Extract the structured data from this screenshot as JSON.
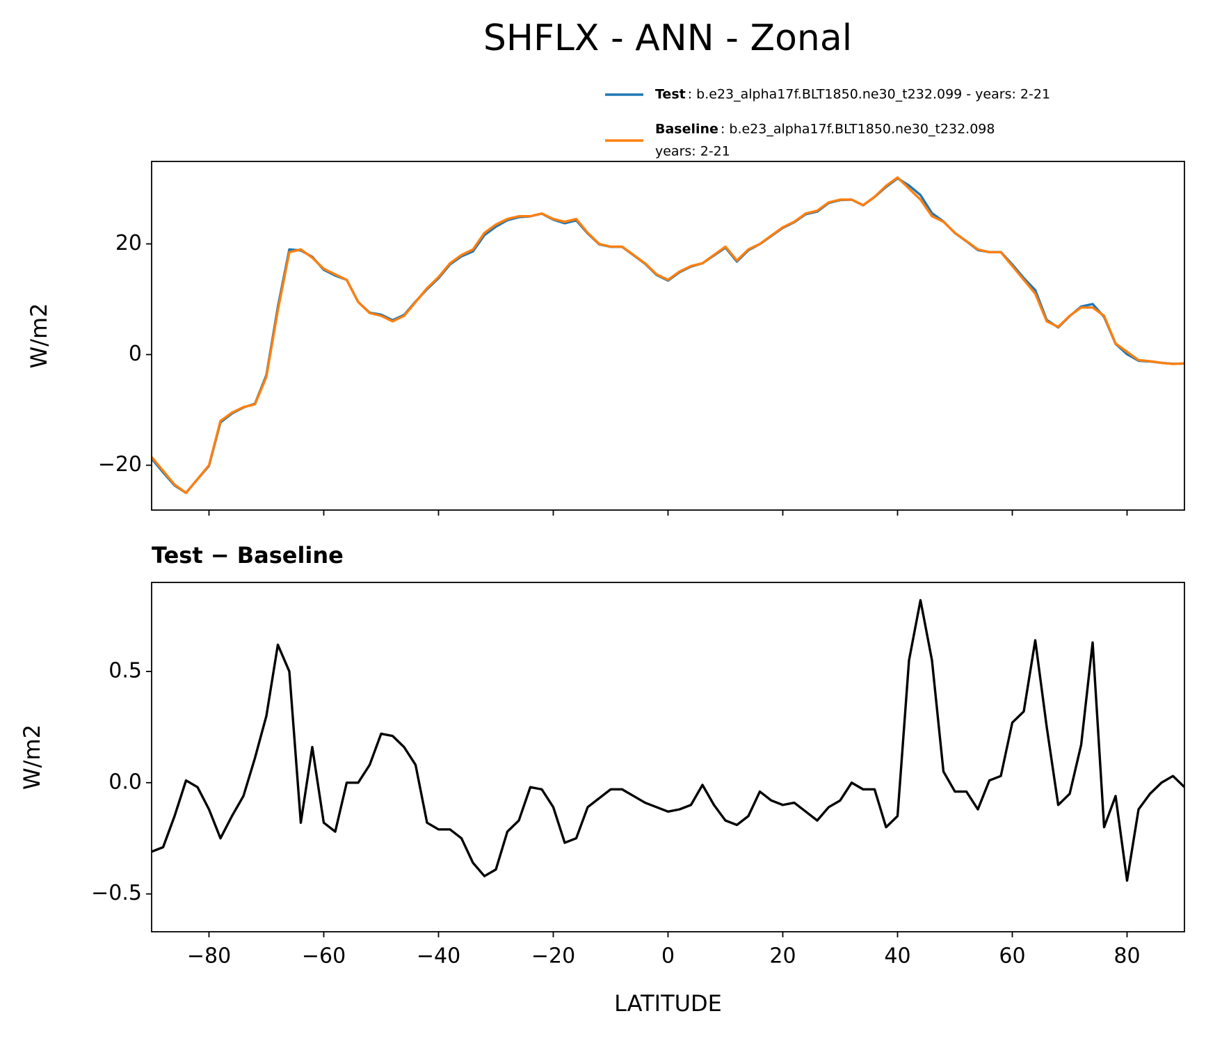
{
  "title": "SHFLX - ANN - Zonal",
  "chart_data": [
    {
      "type": "line",
      "ylabel": "W/m2",
      "show_xtick_labels": false,
      "legend": "above",
      "xlim": [
        -90,
        90
      ],
      "ylim": [
        -28.1,
        34.9
      ],
      "xticks": [
        {
          "value": -80,
          "label": "−80"
        },
        {
          "value": -60,
          "label": "−60"
        },
        {
          "value": -40,
          "label": "−40"
        },
        {
          "value": -20,
          "label": "−20"
        },
        0,
        20,
        40,
        60,
        80
      ],
      "yticks": [
        {
          "value": -20,
          "label": "−20"
        },
        0,
        20
      ],
      "x": [
        -90,
        -88,
        -86,
        -84,
        -82,
        -80,
        -78,
        -76,
        -74,
        -72,
        -70,
        -68,
        -66,
        -64,
        -62,
        -60,
        -58,
        -56,
        -54,
        -52,
        -50,
        -48,
        -46,
        -44,
        -42,
        -40,
        -38,
        -36,
        -34,
        -32,
        -30,
        -28,
        -26,
        -24,
        -22,
        -20,
        -18,
        -16,
        -14,
        -12,
        -10,
        -8,
        -6,
        -4,
        -2,
        0,
        2,
        4,
        6,
        8,
        10,
        12,
        14,
        16,
        18,
        20,
        22,
        24,
        26,
        28,
        30,
        32,
        34,
        36,
        38,
        40,
        42,
        44,
        46,
        48,
        50,
        52,
        54,
        56,
        58,
        60,
        62,
        64,
        66,
        68,
        70,
        72,
        74,
        76,
        78,
        80,
        82,
        84,
        86,
        88,
        90
      ],
      "series": [
        {
          "name": "Test",
          "description": [
            ": b.e23_alpha17f.BLT1850.ne30_t232.099 - years: 2-21"
          ],
          "color": "#1f77b4",
          "values": [
            -18.81,
            -21.29,
            -23.65,
            -24.99,
            -22.52,
            -20.12,
            -12.25,
            -10.65,
            -9.56,
            -8.89,
            -3.7,
            8.62,
            19.0,
            18.82,
            17.66,
            15.32,
            14.28,
            13.5,
            9.5,
            7.58,
            7.22,
            6.21,
            7.16,
            9.58,
            11.82,
            13.79,
            16.29,
            17.75,
            18.64,
            21.58,
            23.11,
            24.28,
            24.83,
            24.98,
            25.47,
            24.39,
            23.73,
            24.25,
            21.89,
            19.93,
            19.47,
            19.47,
            17.94,
            16.41,
            14.39,
            13.37,
            14.88,
            15.9,
            16.49,
            17.9,
            19.33,
            16.81,
            18.85,
            19.96,
            21.42,
            22.9,
            23.91,
            25.37,
            25.83,
            27.39,
            27.92,
            28.0,
            26.97,
            28.47,
            30.3,
            31.85,
            30.55,
            28.82,
            25.55,
            24.05,
            21.96,
            20.46,
            18.88,
            18.51,
            18.53,
            16.27,
            13.82,
            11.64,
            6.25,
            4.9,
            6.95,
            8.67,
            9.13,
            6.8,
            1.94,
            0.06,
            -1.12,
            -1.25,
            -1.5,
            -1.67,
            -1.62
          ]
        },
        {
          "name": "Baseline",
          "description": [
            ": b.e23_alpha17f.BLT1850.ne30_t232.098",
            "years: 2-21"
          ],
          "color": "#ff7f0e",
          "values": [
            -18.5,
            -21,
            -23.5,
            -25,
            -22.5,
            -20,
            -12,
            -10.5,
            -9.5,
            -9,
            -4,
            8,
            18.5,
            19,
            17.5,
            15.5,
            14.5,
            13.5,
            9.5,
            7.5,
            7,
            6,
            7,
            9.5,
            12,
            14,
            16.5,
            18,
            19,
            22,
            23.5,
            24.5,
            25,
            25,
            25.5,
            24.5,
            24,
            24.5,
            22,
            20,
            19.5,
            19.5,
            18,
            16.5,
            14.5,
            13.5,
            15,
            16,
            16.5,
            18,
            19.5,
            17,
            19,
            20,
            21.5,
            23,
            24,
            25.5,
            26,
            27.5,
            28,
            28,
            27,
            28.5,
            30.5,
            32,
            30,
            28,
            25,
            24,
            22,
            20.5,
            19,
            18.5,
            18.5,
            16,
            13.5,
            11,
            6,
            5,
            7,
            8.5,
            8.5,
            7,
            2,
            0.5,
            -1,
            -1.2,
            -1.5,
            -1.7,
            -1.6
          ]
        }
      ]
    },
    {
      "type": "line",
      "title": "Test − Baseline",
      "ylabel": "W/m2",
      "xlabel": "LATITUDE",
      "show_xtick_labels": true,
      "xlim": [
        -90,
        90
      ],
      "ylim": [
        -0.67,
        0.9
      ],
      "xticks": [
        {
          "value": -80,
          "label": "−80"
        },
        {
          "value": -60,
          "label": "−60"
        },
        {
          "value": -40,
          "label": "−40"
        },
        {
          "value": -20,
          "label": "−20"
        },
        0,
        20,
        40,
        60,
        80
      ],
      "yticks": [
        {
          "value": -0.5,
          "label": "−0.5"
        },
        {
          "value": 0,
          "label": "0.0"
        },
        0.5
      ],
      "x": [
        -90,
        -88,
        -86,
        -84,
        -82,
        -80,
        -78,
        -76,
        -74,
        -72,
        -70,
        -68,
        -66,
        -64,
        -62,
        -60,
        -58,
        -56,
        -54,
        -52,
        -50,
        -48,
        -46,
        -44,
        -42,
        -40,
        -38,
        -36,
        -34,
        -32,
        -30,
        -28,
        -26,
        -24,
        -22,
        -20,
        -18,
        -16,
        -14,
        -12,
        -10,
        -8,
        -6,
        -4,
        -2,
        0,
        2,
        4,
        6,
        8,
        10,
        12,
        14,
        16,
        18,
        20,
        22,
        24,
        26,
        28,
        30,
        32,
        34,
        36,
        38,
        40,
        42,
        44,
        46,
        48,
        50,
        52,
        54,
        56,
        58,
        60,
        62,
        64,
        66,
        68,
        70,
        72,
        74,
        76,
        78,
        80,
        82,
        84,
        86,
        88,
        90
      ],
      "series": [
        {
          "color": "#000000",
          "values": [
            -0.31,
            -0.29,
            -0.15,
            0.01,
            -0.02,
            -0.12,
            -0.25,
            -0.15,
            -0.06,
            0.11,
            0.3,
            0.62,
            0.5,
            -0.18,
            0.16,
            -0.18,
            -0.22,
            0.0,
            0.0,
            0.08,
            0.22,
            0.21,
            0.16,
            0.08,
            -0.18,
            -0.21,
            -0.21,
            -0.25,
            -0.36,
            -0.42,
            -0.39,
            -0.22,
            -0.17,
            -0.02,
            -0.03,
            -0.11,
            -0.27,
            -0.25,
            -0.11,
            -0.07,
            -0.03,
            -0.03,
            -0.06,
            -0.09,
            -0.11,
            -0.13,
            -0.12,
            -0.1,
            -0.01,
            -0.1,
            -0.17,
            -0.19,
            -0.15,
            -0.04,
            -0.08,
            -0.1,
            -0.09,
            -0.13,
            -0.17,
            -0.11,
            -0.08,
            0.0,
            -0.03,
            -0.03,
            -0.2,
            -0.15,
            0.55,
            0.82,
            0.55,
            0.05,
            -0.04,
            -0.04,
            -0.12,
            0.01,
            0.03,
            0.27,
            0.32,
            0.64,
            0.25,
            -0.1,
            -0.05,
            0.17,
            0.63,
            -0.2,
            -0.06,
            -0.44,
            -0.12,
            -0.05,
            0.0,
            0.03,
            -0.02
          ]
        }
      ]
    }
  ]
}
